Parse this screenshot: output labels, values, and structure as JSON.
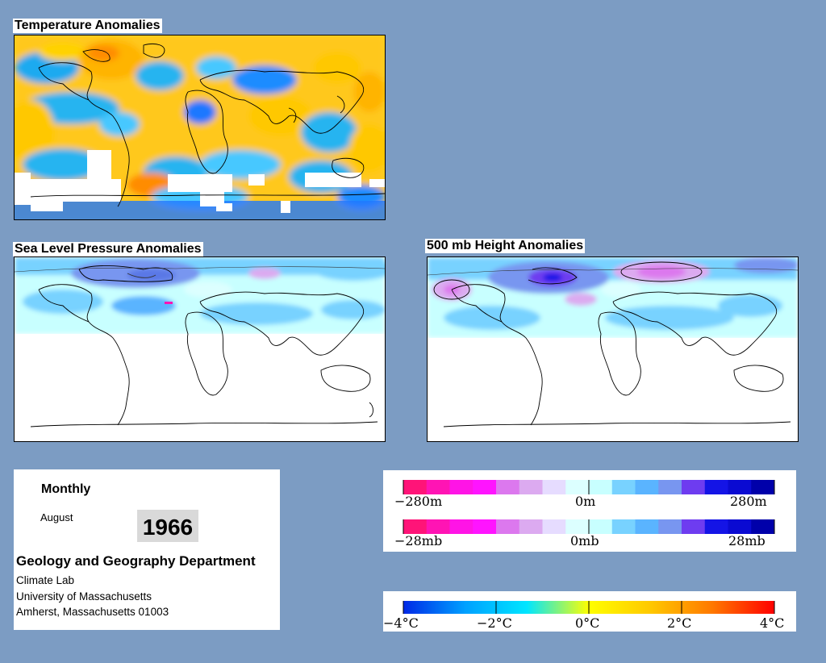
{
  "panels": {
    "temperature": {
      "title": "Temperature Anomalies"
    },
    "slp": {
      "title": "Sea Level Pressure Anomalies"
    },
    "height500": {
      "title": "500 mb Height Anomalies"
    }
  },
  "info": {
    "period": "Monthly",
    "month": "August",
    "year": "1966",
    "department": "Geology and Geography Department",
    "lines": [
      "Climate Lab",
      "University of Massachusetts",
      "Amherst, Massachusetts 01003"
    ]
  },
  "legend_height": {
    "colors": [
      "#ff1478",
      "#ff14b4",
      "#ff14e6",
      "#ff14ff",
      "#dc78ee",
      "#dcaaf0",
      "#e6dcff",
      "#dcffff",
      "#c8ffff",
      "#78d2ff",
      "#5ab4ff",
      "#7896f0",
      "#6e3cf0",
      "#1414e6",
      "#0a0ad2",
      "#0000aa"
    ],
    "labels": [
      "−280m",
      "0m",
      "280m"
    ]
  },
  "legend_pressure": {
    "colors": [
      "#ff1478",
      "#ff14b4",
      "#ff14e6",
      "#ff14ff",
      "#dc78ee",
      "#dcaaf0",
      "#e6dcff",
      "#dcffff",
      "#c8ffff",
      "#78d2ff",
      "#5ab4ff",
      "#7896f0",
      "#6e3cf0",
      "#1414e6",
      "#0a0ad2",
      "#0000aa"
    ],
    "labels": [
      "−28mb",
      "0mb",
      "28mb"
    ]
  },
  "legend_temperature": {
    "gradient": [
      "#0028e6",
      "#00a0ff",
      "#00e6ff",
      "#ffff00",
      "#ffc800",
      "#ff7800",
      "#ff0000"
    ],
    "labels": [
      "−4°C",
      "−2°C",
      "0°C",
      "2°C",
      "4°C"
    ]
  }
}
